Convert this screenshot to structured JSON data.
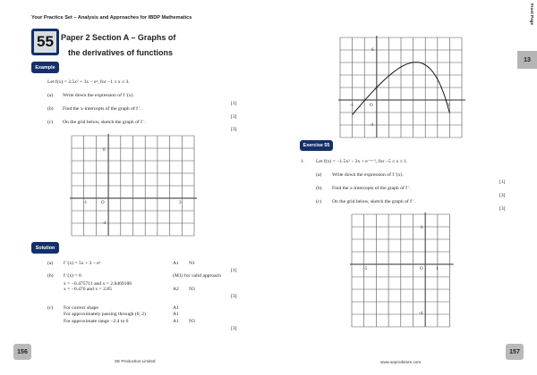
{
  "left_page": {
    "header": "Your Practice Set – Analysis and Approaches for IBDP Mathematics",
    "chapter_number": "55",
    "title_line1": "Paper 2 Section A – Graphs of",
    "title_line2": "the derivatives of functions",
    "example_label": "Example",
    "example": {
      "stem": "Let f(x) = 2.5x² + 3x − eˣ, for −1 ≤ x ≤ 3.",
      "parts": [
        {
          "label": "(a)",
          "text": "Write down the expression of f ′(x).",
          "marks": "[1]"
        },
        {
          "label": "(b)",
          "text": "Find the x-intercepts of the graph of f ′.",
          "marks": "[3]"
        },
        {
          "label": "(c)",
          "text": "On the grid below, sketch the graph of f ′.",
          "marks": "[3]"
        }
      ],
      "grid": {
        "x_labels": [
          "-1",
          "O",
          "3"
        ],
        "y_labels": [
          "6",
          "-4"
        ]
      }
    },
    "solution_label": "Solution",
    "solution": [
      {
        "label": "(a)",
        "lines": [
          "f ′(x) = 5x + 3 − eˣ"
        ],
        "award": [
          [
            "A1",
            "N1"
          ]
        ],
        "marks": "[1]"
      },
      {
        "label": "(b)",
        "lines": [
          "f ′(x) = 0",
          "x = −0.475711 and x = 2.8469186",
          "x = −0.476 and x = 2.85"
        ],
        "award": [
          [
            "(M1) for valid approach",
            ""
          ],
          [
            "",
            ""
          ],
          [
            "A2",
            "N3"
          ]
        ],
        "marks": "[3]"
      },
      {
        "label": "(c)",
        "lines": [
          "For correct shape",
          "For approximately passing through (0, 2)",
          "For approximate range −2.4 to 6"
        ],
        "award": [
          [
            "A1",
            ""
          ],
          [
            "A1",
            ""
          ],
          [
            "A1",
            "N3"
          ]
        ],
        "marks": "[3]"
      }
    ],
    "page_number": "156",
    "footer": "SE Production Limited"
  },
  "right_page": {
    "side_tab": "Front Page",
    "chapter_tab": "13",
    "solution_graph": {
      "x_labels": [
        "-1",
        "O",
        "3"
      ],
      "y_labels": [
        "6",
        "-4"
      ]
    },
    "exercise_label": "Exercise 55",
    "exercise": {
      "number": "1.",
      "stem": "Let f(x) = −1.5x² − 2x + e⁻ˣ⁻¹, for −5 ≤ x ≤ 1.",
      "parts": [
        {
          "label": "(a)",
          "text": "Write down the expression of f ′(x).",
          "marks": "[1]"
        },
        {
          "label": "(b)",
          "text": "Find the x-intercepts of the graph of f ′.",
          "marks": "[3]"
        },
        {
          "label": "(c)",
          "text": "On the grid below, sketch the graph of f ′.",
          "marks": "[3]"
        }
      ],
      "grid": {
        "x_labels": [
          "-5",
          "O",
          "1"
        ],
        "y_labels": [
          "6",
          "-4"
        ]
      }
    },
    "page_number": "157",
    "footer": "www.seprodstore.com"
  }
}
